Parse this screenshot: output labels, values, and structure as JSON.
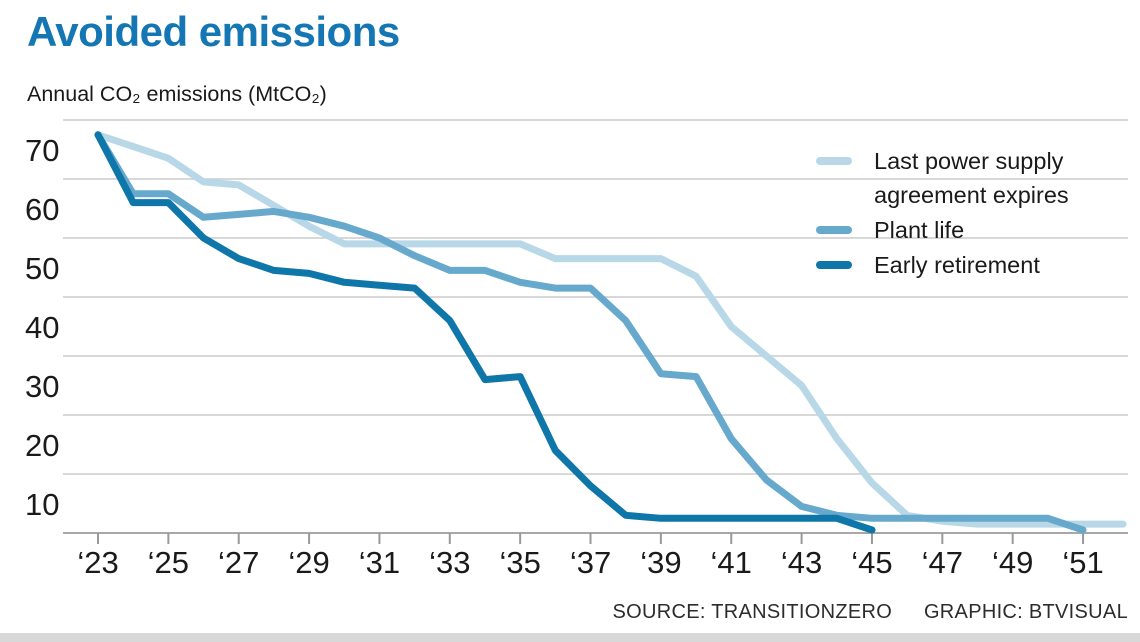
{
  "title": "Avoided emissions",
  "subtitle": "Annual CO₂ emissions (MtCO₂)",
  "footer": {
    "source_label": "SOURCE: TRANSITIONZERO",
    "credit_label": "GRAPHIC: BTVISUAL"
  },
  "colors": {
    "title": "#1477b4",
    "grid": "#cbcbcb",
    "axis": "#a8a8a8",
    "tick": "#999999",
    "label_text": "#1a1a1a",
    "bottom_bar": "#d8d8d8"
  },
  "chart_data": {
    "type": "line",
    "title": "Avoided emissions",
    "ylabel": "Annual CO₂ emissions (MtCO₂)",
    "xlabel": "",
    "ylim": [
      0,
      70
    ],
    "yticks": [
      10,
      20,
      30,
      40,
      50,
      60,
      70
    ],
    "grid": "horizontal",
    "legend_position": "top-right",
    "years": [
      2023,
      2024,
      2025,
      2026,
      2027,
      2028,
      2029,
      2030,
      2031,
      2032,
      2033,
      2034,
      2035,
      2036,
      2037,
      2038,
      2039,
      2040,
      2041,
      2042,
      2043,
      2044,
      2045,
      2046,
      2047,
      2048,
      2049,
      2050,
      2051
    ],
    "x_tick_labels": [
      "‘23",
      "‘25",
      "‘27",
      "‘29",
      "‘31",
      "‘33",
      "‘35",
      "‘37",
      "‘39",
      "‘41",
      "‘43",
      "‘45",
      "‘47",
      "‘49",
      "‘51"
    ],
    "series": [
      {
        "name": "Last power supply agreement expires",
        "color": "#b8d8e8",
        "extend": true,
        "values": [
          67.5,
          65.5,
          63.5,
          59.5,
          59,
          55.5,
          52,
          49,
          49,
          49,
          49,
          49,
          49,
          46.5,
          46.5,
          46.5,
          46.5,
          43.5,
          35,
          30,
          25,
          16,
          8.5,
          3,
          2,
          1.5,
          1.5,
          1.5,
          1.5
        ]
      },
      {
        "name": "Plant life",
        "color": "#66a9cd",
        "extend": false,
        "values": [
          67.5,
          57.5,
          57.5,
          53.5,
          54,
          54.5,
          53.5,
          52,
          50,
          47,
          44.5,
          44.5,
          42.5,
          41.5,
          41.5,
          36,
          27,
          26.5,
          16,
          9,
          4.5,
          3,
          2.5,
          2.5,
          2.5,
          2.5,
          2.5,
          2.5,
          0.5
        ]
      },
      {
        "name": "Early retirement",
        "color": "#0e76a8",
        "extend": false,
        "values": [
          67.5,
          56,
          56,
          50,
          46.5,
          44.5,
          44,
          42.5,
          42,
          41.5,
          36,
          26,
          26.5,
          14,
          8,
          3,
          2.5,
          2.5,
          2.5,
          2.5,
          2.5,
          2.5,
          0.5,
          null,
          null,
          null,
          null,
          null,
          null
        ]
      }
    ]
  }
}
